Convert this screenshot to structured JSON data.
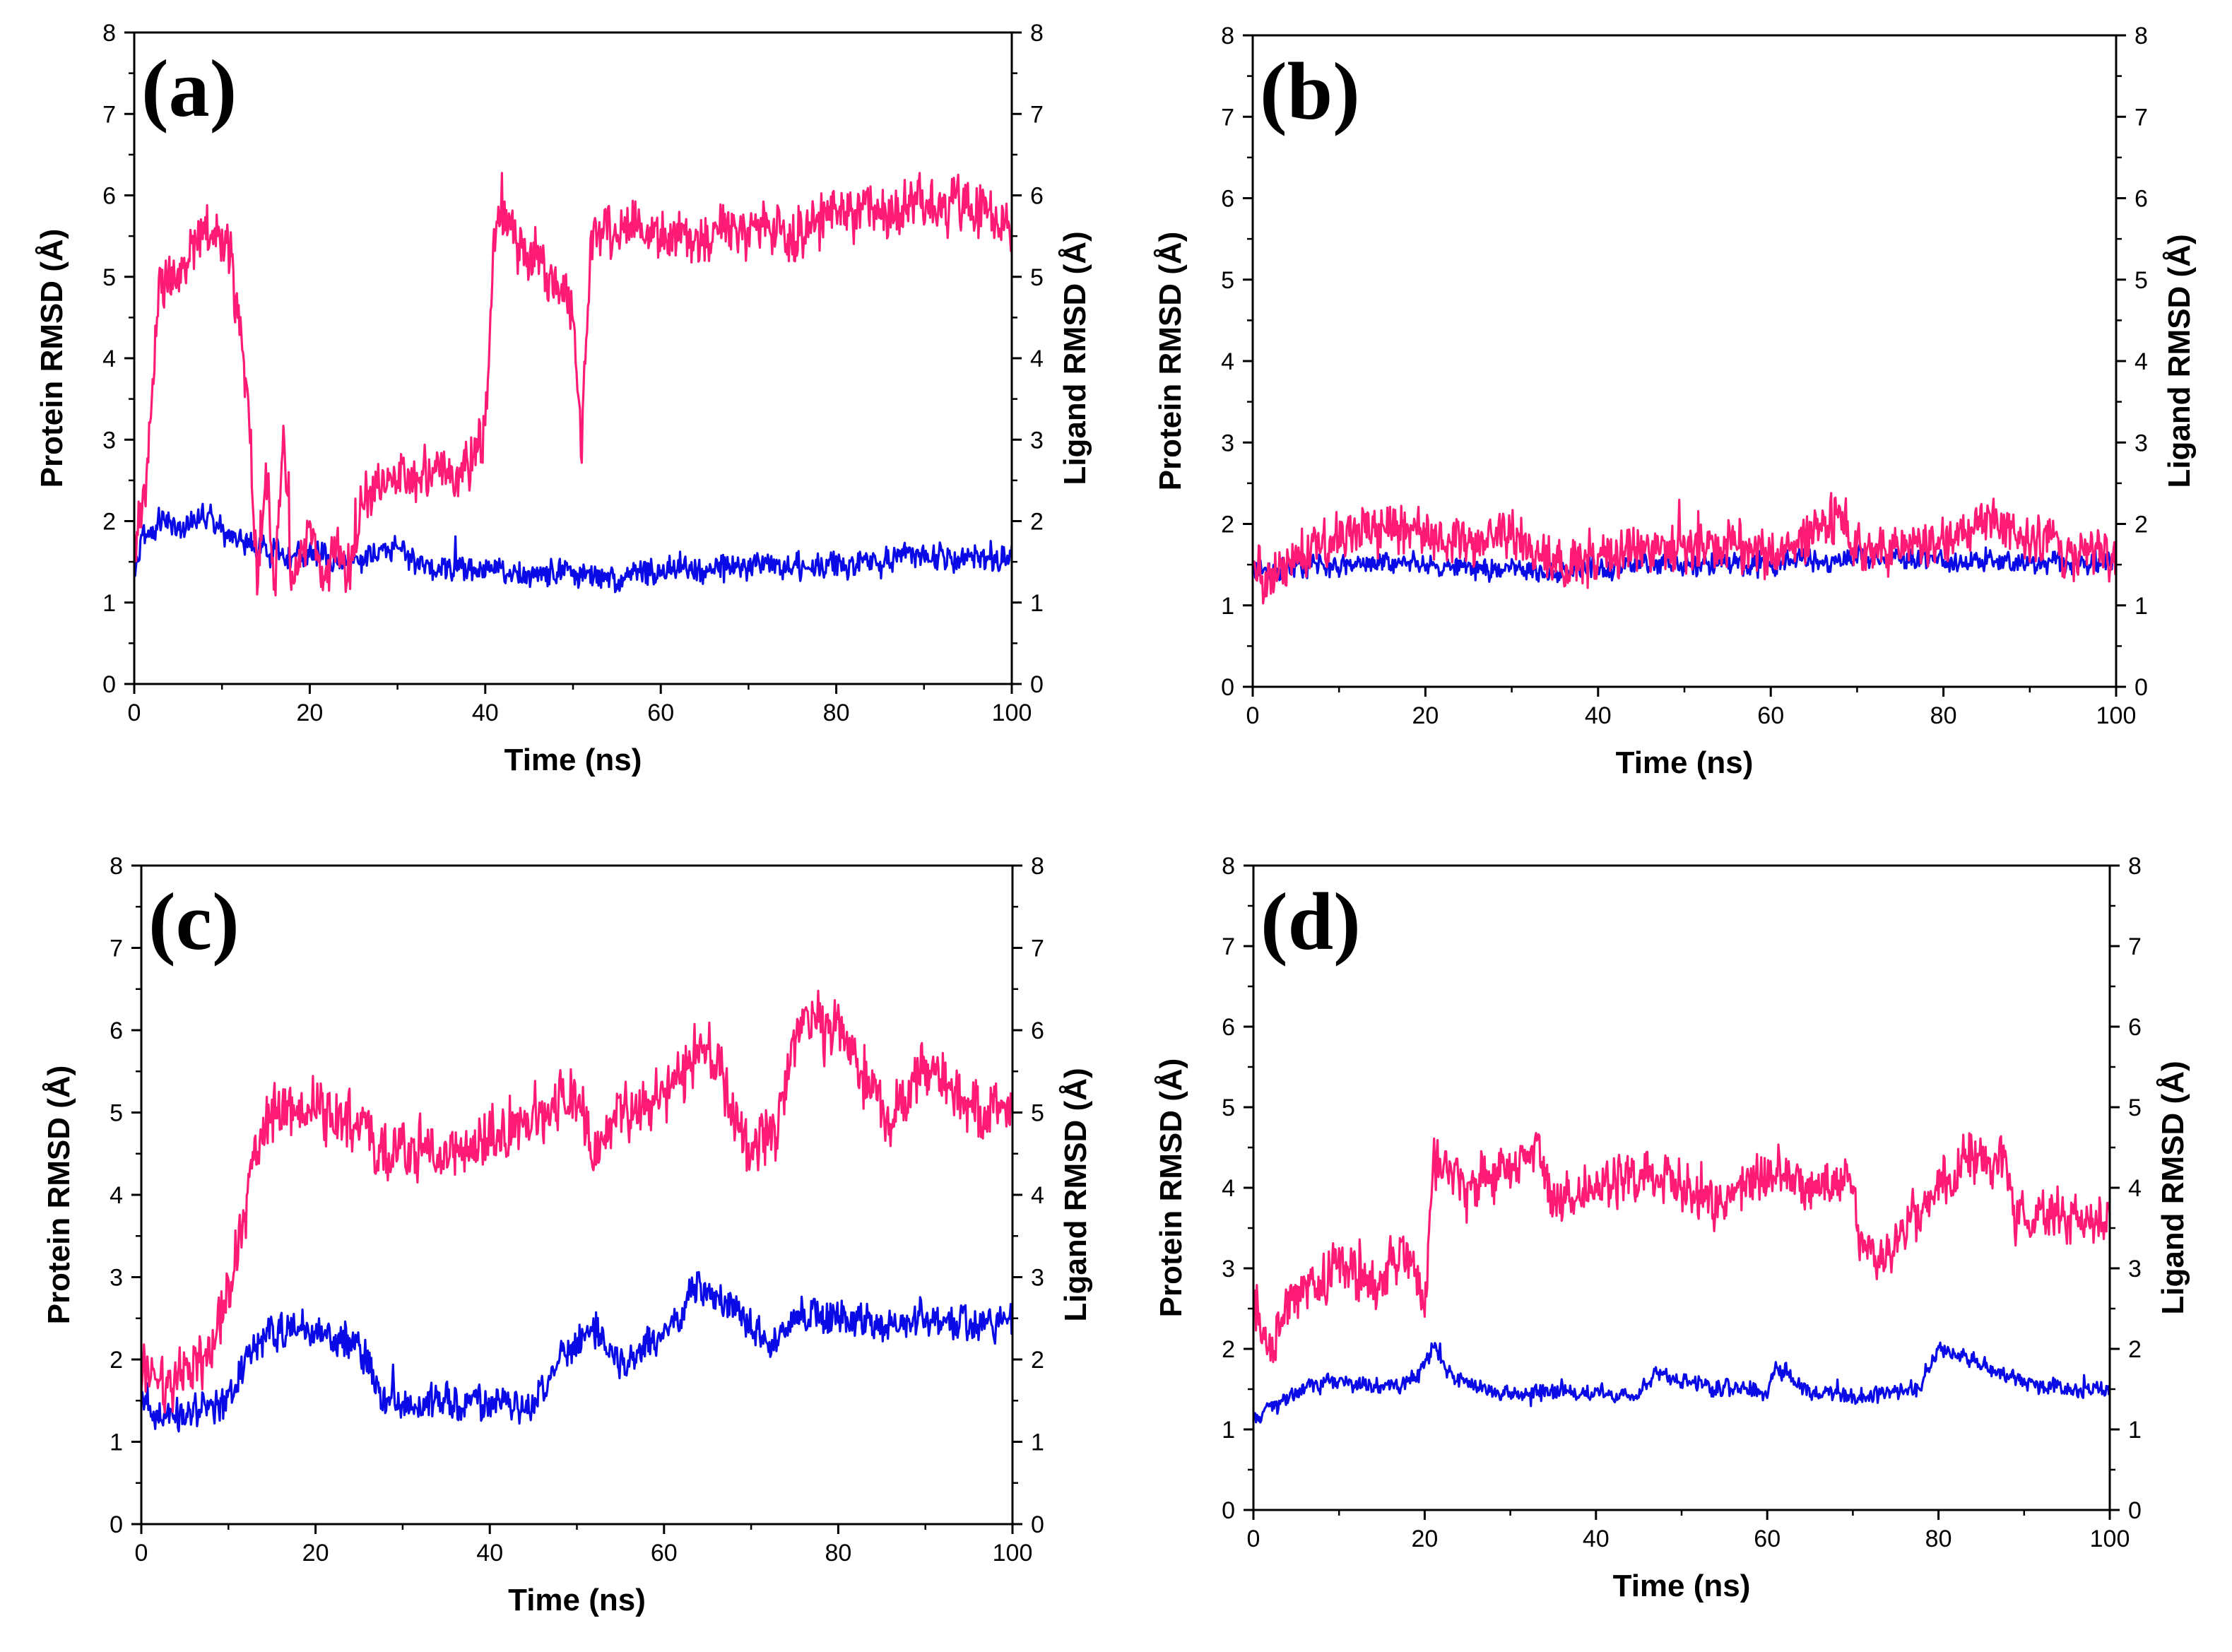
{
  "chart_data": [
    {
      "type": "line",
      "panel_label": "(a)",
      "xlabel": "Time (ns)",
      "ylabel": "Protein RMSD (Å)",
      "y2label": "Ligand RMSD (Å)",
      "xlim": [
        0,
        100
      ],
      "ylim": [
        0,
        8
      ],
      "y2lim": [
        0,
        8
      ],
      "xticks": [
        "0",
        "20",
        "40",
        "60",
        "80",
        "100"
      ],
      "yticks": [
        "0",
        "1",
        "2",
        "3",
        "4",
        "5",
        "6",
        "7",
        "8"
      ],
      "series": [
        {
          "name": "Protein RMSD",
          "axis": "left",
          "color": "#0a0ae6",
          "noise": 0.22,
          "x": [
            0,
            1,
            3,
            6,
            8,
            10,
            13,
            16,
            20,
            24,
            28,
            30,
            32,
            36,
            40,
            45,
            50,
            55,
            60,
            65,
            70,
            75,
            80,
            85,
            88,
            92,
            96,
            100
          ],
          "y": [
            1.3,
            1.8,
            2.0,
            1.9,
            2.1,
            1.9,
            1.7,
            1.6,
            1.6,
            1.5,
            1.6,
            1.7,
            1.5,
            1.4,
            1.4,
            1.35,
            1.35,
            1.3,
            1.4,
            1.4,
            1.45,
            1.45,
            1.45,
            1.5,
            1.6,
            1.6,
            1.55,
            1.55
          ]
        },
        {
          "name": "Ligand RMSD",
          "axis": "right",
          "color": "#ff1a75",
          "noise": 0.45,
          "x": [
            0,
            1,
            2,
            3,
            5,
            7,
            9,
            11,
            12,
            13,
            14,
            15,
            16,
            17,
            18,
            19,
            20,
            21,
            22,
            23,
            24,
            25,
            26,
            30,
            34,
            38,
            39,
            40,
            41,
            42,
            45,
            48,
            50,
            51,
            52,
            53,
            56,
            60,
            65,
            70,
            75,
            80,
            85,
            90,
            95,
            100
          ],
          "y": [
            1.6,
            2.2,
            3.5,
            5.0,
            5.0,
            5.4,
            5.6,
            5.3,
            4.2,
            3.5,
            1.3,
            2.6,
            1.2,
            3.0,
            1.2,
            1.6,
            2.0,
            1.5,
            1.3,
            1.8,
            1.4,
            1.4,
            2.4,
            2.5,
            2.6,
            2.7,
            2.9,
            3.2,
            5.5,
            5.8,
            5.2,
            5.0,
            4.6,
            2.8,
            5.4,
            5.5,
            5.6,
            5.5,
            5.5,
            5.6,
            5.5,
            5.9,
            5.8,
            5.9,
            5.9,
            5.6
          ]
        }
      ]
    },
    {
      "type": "line",
      "panel_label": "(b)",
      "xlabel": "Time (ns)",
      "ylabel": "Protein RMSD (Å)",
      "y2label": "Ligand RMSD (Å)",
      "xlim": [
        0,
        100
      ],
      "ylim": [
        0,
        8
      ],
      "y2lim": [
        0,
        8
      ],
      "xticks": [
        "0",
        "20",
        "40",
        "60",
        "80",
        "100"
      ],
      "yticks": [
        "0",
        "1",
        "2",
        "3",
        "4",
        "5",
        "6",
        "7",
        "8"
      ],
      "series": [
        {
          "name": "Protein RMSD",
          "axis": "left",
          "color": "#0a0ae6",
          "noise": 0.18,
          "x": [
            0,
            2,
            5,
            10,
            15,
            20,
            25,
            30,
            35,
            40,
            45,
            50,
            55,
            60,
            65,
            70,
            75,
            80,
            85,
            90,
            95,
            100
          ],
          "y": [
            1.5,
            1.4,
            1.5,
            1.5,
            1.55,
            1.5,
            1.45,
            1.45,
            1.4,
            1.45,
            1.5,
            1.5,
            1.5,
            1.5,
            1.55,
            1.6,
            1.6,
            1.55,
            1.55,
            1.5,
            1.5,
            1.5
          ]
        },
        {
          "name": "Ligand RMSD",
          "axis": "right",
          "color": "#ff1a75",
          "noise": 0.4,
          "x": [
            0,
            2,
            4,
            7,
            10,
            12,
            15,
            20,
            25,
            30,
            33,
            36,
            40,
            45,
            50,
            55,
            60,
            65,
            68,
            70,
            75,
            80,
            85,
            87,
            90,
            95,
            100
          ],
          "y": [
            1.6,
            1.2,
            1.5,
            1.7,
            1.8,
            1.9,
            1.9,
            1.9,
            1.8,
            1.9,
            1.6,
            1.5,
            1.6,
            1.7,
            1.7,
            1.8,
            1.6,
            1.9,
            2.1,
            1.6,
            1.7,
            1.8,
            2.1,
            2.0,
            1.8,
            1.7,
            1.7
          ]
        }
      ]
    },
    {
      "type": "line",
      "panel_label": "(c)",
      "xlabel": "Time (ns)",
      "ylabel": "Protein RMSD (Å)",
      "y2label": "Ligand RMSD (Å)",
      "xlim": [
        0,
        100
      ],
      "ylim": [
        0,
        8
      ],
      "y2lim": [
        0,
        8
      ],
      "xticks": [
        "0",
        "20",
        "40",
        "60",
        "80",
        "100"
      ],
      "yticks": [
        "0",
        "1",
        "2",
        "3",
        "4",
        "5",
        "6",
        "7",
        "8"
      ],
      "series": [
        {
          "name": "Protein RMSD",
          "axis": "left",
          "color": "#0a0ae6",
          "noise": 0.3,
          "x": [
            0,
            3,
            6,
            10,
            12,
            15,
            20,
            25,
            27,
            30,
            35,
            40,
            45,
            48,
            52,
            55,
            60,
            64,
            68,
            72,
            76,
            80,
            85,
            90,
            95,
            100
          ],
          "y": [
            1.5,
            1.3,
            1.4,
            1.5,
            2.0,
            2.4,
            2.3,
            2.2,
            1.6,
            1.4,
            1.5,
            1.5,
            1.4,
            2.0,
            2.4,
            2.0,
            2.3,
            2.9,
            2.6,
            2.2,
            2.6,
            2.5,
            2.4,
            2.5,
            2.4,
            2.5
          ]
        },
        {
          "name": "Ligand RMSD",
          "axis": "right",
          "color": "#ff1a75",
          "noise": 0.48,
          "x": [
            0,
            3,
            6,
            9,
            10,
            11,
            13,
            15,
            20,
            25,
            28,
            30,
            35,
            40,
            45,
            50,
            52,
            55,
            60,
            63,
            65,
            68,
            70,
            73,
            76,
            78,
            80,
            83,
            86,
            90,
            95,
            100
          ],
          "y": [
            1.8,
            1.7,
            1.9,
            2.4,
            2.8,
            3.2,
            4.6,
            5.0,
            5.0,
            4.9,
            4.4,
            4.6,
            4.5,
            4.7,
            5.0,
            5.2,
            4.5,
            5.0,
            5.2,
            5.6,
            5.8,
            5.0,
            4.6,
            4.8,
            6.3,
            6.0,
            6.0,
            5.4,
            4.9,
            5.6,
            5.0,
            5.0
          ]
        }
      ]
    },
    {
      "type": "line",
      "panel_label": "(d)",
      "xlabel": "Time (ns)",
      "ylabel": "Protein RMSD (Å)",
      "y2label": "Ligand RMSD (Å)",
      "xlim": [
        0,
        100
      ],
      "ylim": [
        0,
        8
      ],
      "y2lim": [
        0,
        8
      ],
      "xticks": [
        "0",
        "20",
        "40",
        "60",
        "80",
        "100"
      ],
      "yticks": [
        "0",
        "1",
        "2",
        "3",
        "4",
        "5",
        "6",
        "7",
        "8"
      ],
      "series": [
        {
          "name": "Protein RMSD",
          "axis": "left",
          "color": "#0a0ae6",
          "noise": 0.14,
          "x": [
            0,
            2,
            4,
            6,
            10,
            15,
            19,
            21,
            23,
            26,
            30,
            35,
            40,
            45,
            47,
            50,
            55,
            60,
            61,
            65,
            70,
            75,
            78,
            80,
            83,
            86,
            90,
            95,
            100
          ],
          "y": [
            1.1,
            1.3,
            1.4,
            1.55,
            1.6,
            1.55,
            1.6,
            2.0,
            1.7,
            1.5,
            1.45,
            1.45,
            1.45,
            1.4,
            1.7,
            1.6,
            1.5,
            1.5,
            1.8,
            1.45,
            1.4,
            1.45,
            1.55,
            2.0,
            1.9,
            1.75,
            1.6,
            1.5,
            1.5
          ]
        },
        {
          "name": "Ligand RMSD",
          "axis": "right",
          "color": "#ff1a75",
          "noise": 0.42,
          "x": [
            0,
            2,
            4,
            7,
            10,
            14,
            18,
            19,
            20,
            21,
            25,
            30,
            33,
            35,
            40,
            45,
            50,
            55,
            58,
            60,
            65,
            69,
            71,
            72,
            74,
            76,
            80,
            85,
            88,
            89,
            92,
            96,
            100
          ],
          "y": [
            2.6,
            2.0,
            2.6,
            2.8,
            3.0,
            2.8,
            3.2,
            3.0,
            2.4,
            4.3,
            4.0,
            4.2,
            4.5,
            3.8,
            4.0,
            4.2,
            4.0,
            3.7,
            4.1,
            4.2,
            4.0,
            4.1,
            3.4,
            3.2,
            3.1,
            3.5,
            4.0,
            4.5,
            4.2,
            3.6,
            3.6,
            3.6,
            3.6
          ]
        }
      ]
    }
  ]
}
